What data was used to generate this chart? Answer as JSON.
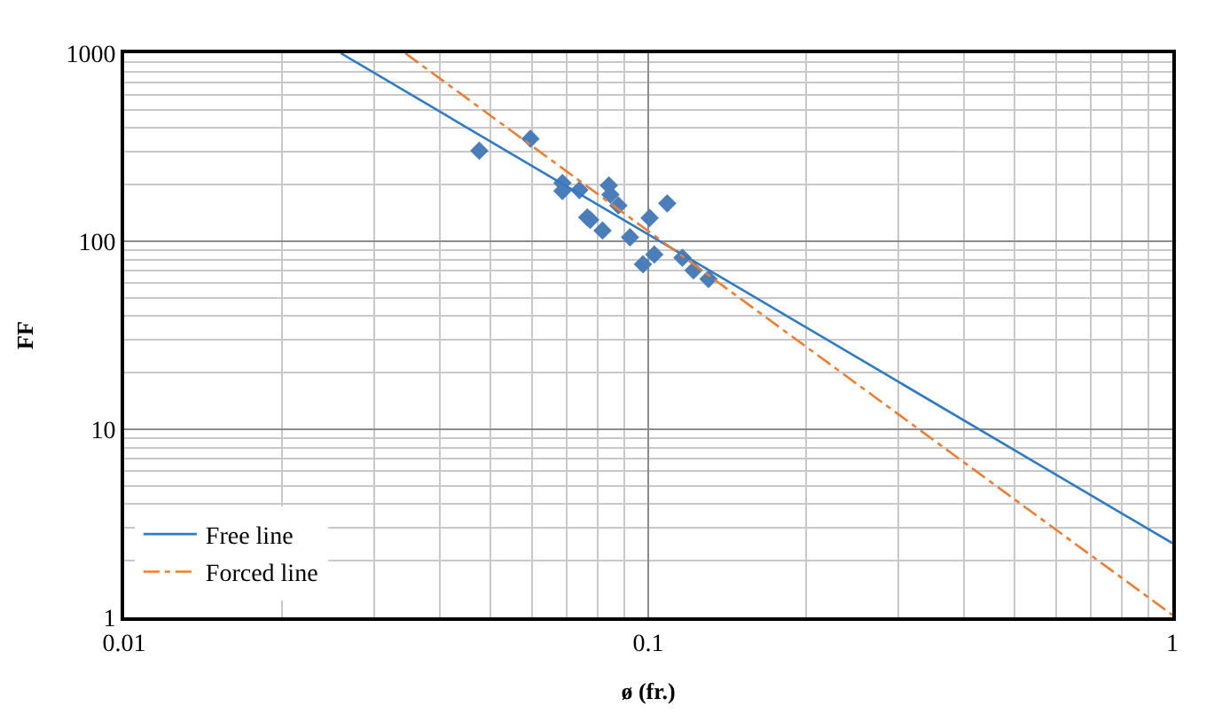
{
  "chart_data": {
    "type": "scatter",
    "xlabel": "ø (fr.)",
    "ylabel": "FF",
    "log": "xy",
    "grid": true,
    "legend": "bottom left",
    "marker": "diamond",
    "xlim": [
      0.01,
      1
    ],
    "xticks": [
      0.01,
      0.1,
      1
    ],
    "ylim": [
      1,
      1000
    ],
    "yticks": [
      1,
      10,
      100,
      1000
    ],
    "series": [
      {
        "color": "#4a7ebb",
        "x": [
          0.0476,
          0.0596,
          0.0686,
          0.0686,
          0.0739,
          0.0765,
          0.0775,
          0.0818,
          0.0841,
          0.0847,
          0.0877,
          0.0923,
          0.0977,
          0.1006,
          0.1027,
          0.1087,
          0.1162,
          0.122,
          0.1303
        ],
        "values": [
          303,
          351,
          204,
          185,
          187,
          134,
          130,
          114,
          198,
          177,
          155,
          105,
          75.5,
          133,
          85,
          159,
          81.7,
          70,
          63
        ]
      },
      {
        "type": "line",
        "name": "Free line",
        "color": "#2e7bc4",
        "line_style": "solid",
        "marker": "none",
        "x": [
          0.0259,
          1
        ],
        "values": [
          1000,
          2.48
        ]
      },
      {
        "type": "line",
        "name": "Forced line",
        "color": "#ed7d31",
        "line_style": "dashdot",
        "marker": "none",
        "x": [
          0.0344,
          1
        ],
        "values": [
          1000,
          1.03
        ]
      }
    ]
  }
}
